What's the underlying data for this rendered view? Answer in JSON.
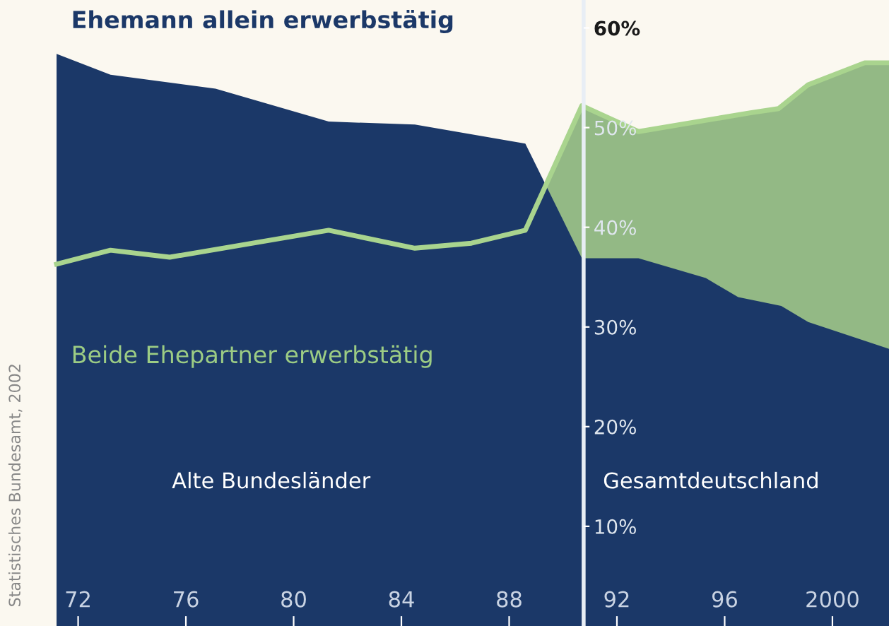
{
  "chart_data": {
    "type": "area",
    "legend": false,
    "grid": false,
    "series": [
      {
        "name": "Beide Ehepartner erwerbstätig",
        "color": "#93b985",
        "x": [
          1971.2,
          1973.2,
          1975.4,
          1981.3,
          1984.5,
          1986.6,
          1988.6,
          1990.7,
          1992.8,
          1997.0,
          1998.0,
          1999.1,
          2001.2,
          2002.1
        ],
        "values": [
          36.3,
          37.7,
          37.0,
          39.7,
          37.9,
          38.4,
          39.7,
          52.2,
          49.6,
          51.5,
          51.9,
          54.3,
          56.5,
          56.5
        ]
      },
      {
        "name": "Ehemann allein erwerbstätig",
        "color": "#1b3868",
        "x": [
          1971.2,
          1973.2,
          1977.1,
          1981.3,
          1984.5,
          1988.6,
          1990.7,
          1992.8,
          1995.3,
          1996.5,
          1998.1,
          1999.1,
          2002.1
        ],
        "values": [
          57.4,
          55.3,
          53.9,
          50.6,
          50.3,
          48.4,
          36.9,
          36.9,
          34.9,
          33.0,
          32.1,
          30.5,
          27.8
        ]
      }
    ],
    "xlim": [
      1969.1,
      2002.1
    ],
    "xticks": [
      {
        "value": 1972,
        "label": "72"
      },
      {
        "value": 1976,
        "label": "76"
      },
      {
        "value": 1980,
        "label": "80"
      },
      {
        "value": 1984,
        "label": "84"
      },
      {
        "value": 1988,
        "label": "88"
      },
      {
        "value": 1992,
        "label": "92"
      },
      {
        "value": 1996,
        "label": "96"
      },
      {
        "value": 2000,
        "label": "2000"
      }
    ],
    "ylim": [
      0,
      62.8
    ],
    "yticks": [
      {
        "value": 10,
        "label": "10%"
      },
      {
        "value": 20,
        "label": "20%"
      },
      {
        "value": 30,
        "label": "30%"
      },
      {
        "value": 40,
        "label": "40%"
      },
      {
        "value": 50,
        "label": "50%"
      },
      {
        "value": 60,
        "label": "60%"
      }
    ],
    "annotations": [
      "Alte Bundesländer",
      "Gesamtdeutschland",
      "Statistisches Bundesamt, 2002"
    ]
  }
}
